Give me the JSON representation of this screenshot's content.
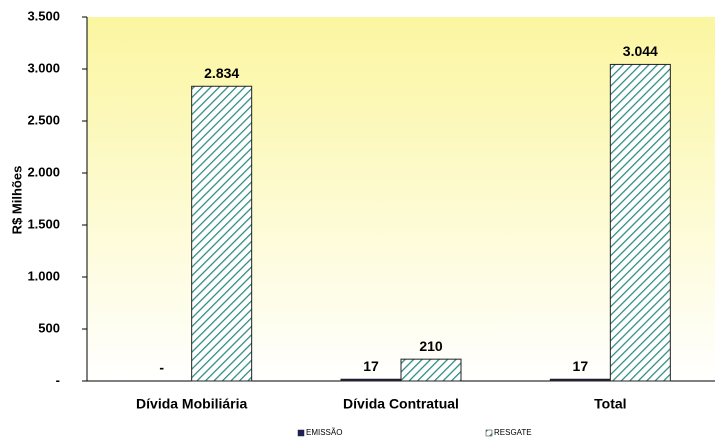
{
  "chart_data": {
    "type": "bar",
    "y_label": "R$ Milhões",
    "categories": [
      "Dívida Mobiliária",
      "Dívida Contratual",
      "Total"
    ],
    "series": [
      {
        "name": "EMISSÃO",
        "color": "#1f1f5c",
        "values": [
          0,
          17,
          17
        ],
        "value_labels": [
          "-",
          "17",
          "17"
        ]
      },
      {
        "name": "RESGATE",
        "color": "#2a8a80",
        "hatch": true,
        "values": [
          2834,
          210,
          3044
        ],
        "value_labels": [
          "2.834",
          "210",
          "3.044"
        ]
      }
    ],
    "ylim": [
      0,
      3500
    ],
    "yticks": [
      {
        "value": 0,
        "label": "-"
      },
      500,
      {
        "value": 1000,
        "label": "1.000"
      },
      {
        "value": 1500,
        "label": "1.500"
      },
      {
        "value": 2000,
        "label": "2.000"
      },
      {
        "value": 2500,
        "label": "2.500"
      },
      {
        "value": 3000,
        "label": "3.000"
      },
      {
        "value": 3500,
        "label": "3.500"
      }
    ],
    "legend": "bottom"
  }
}
